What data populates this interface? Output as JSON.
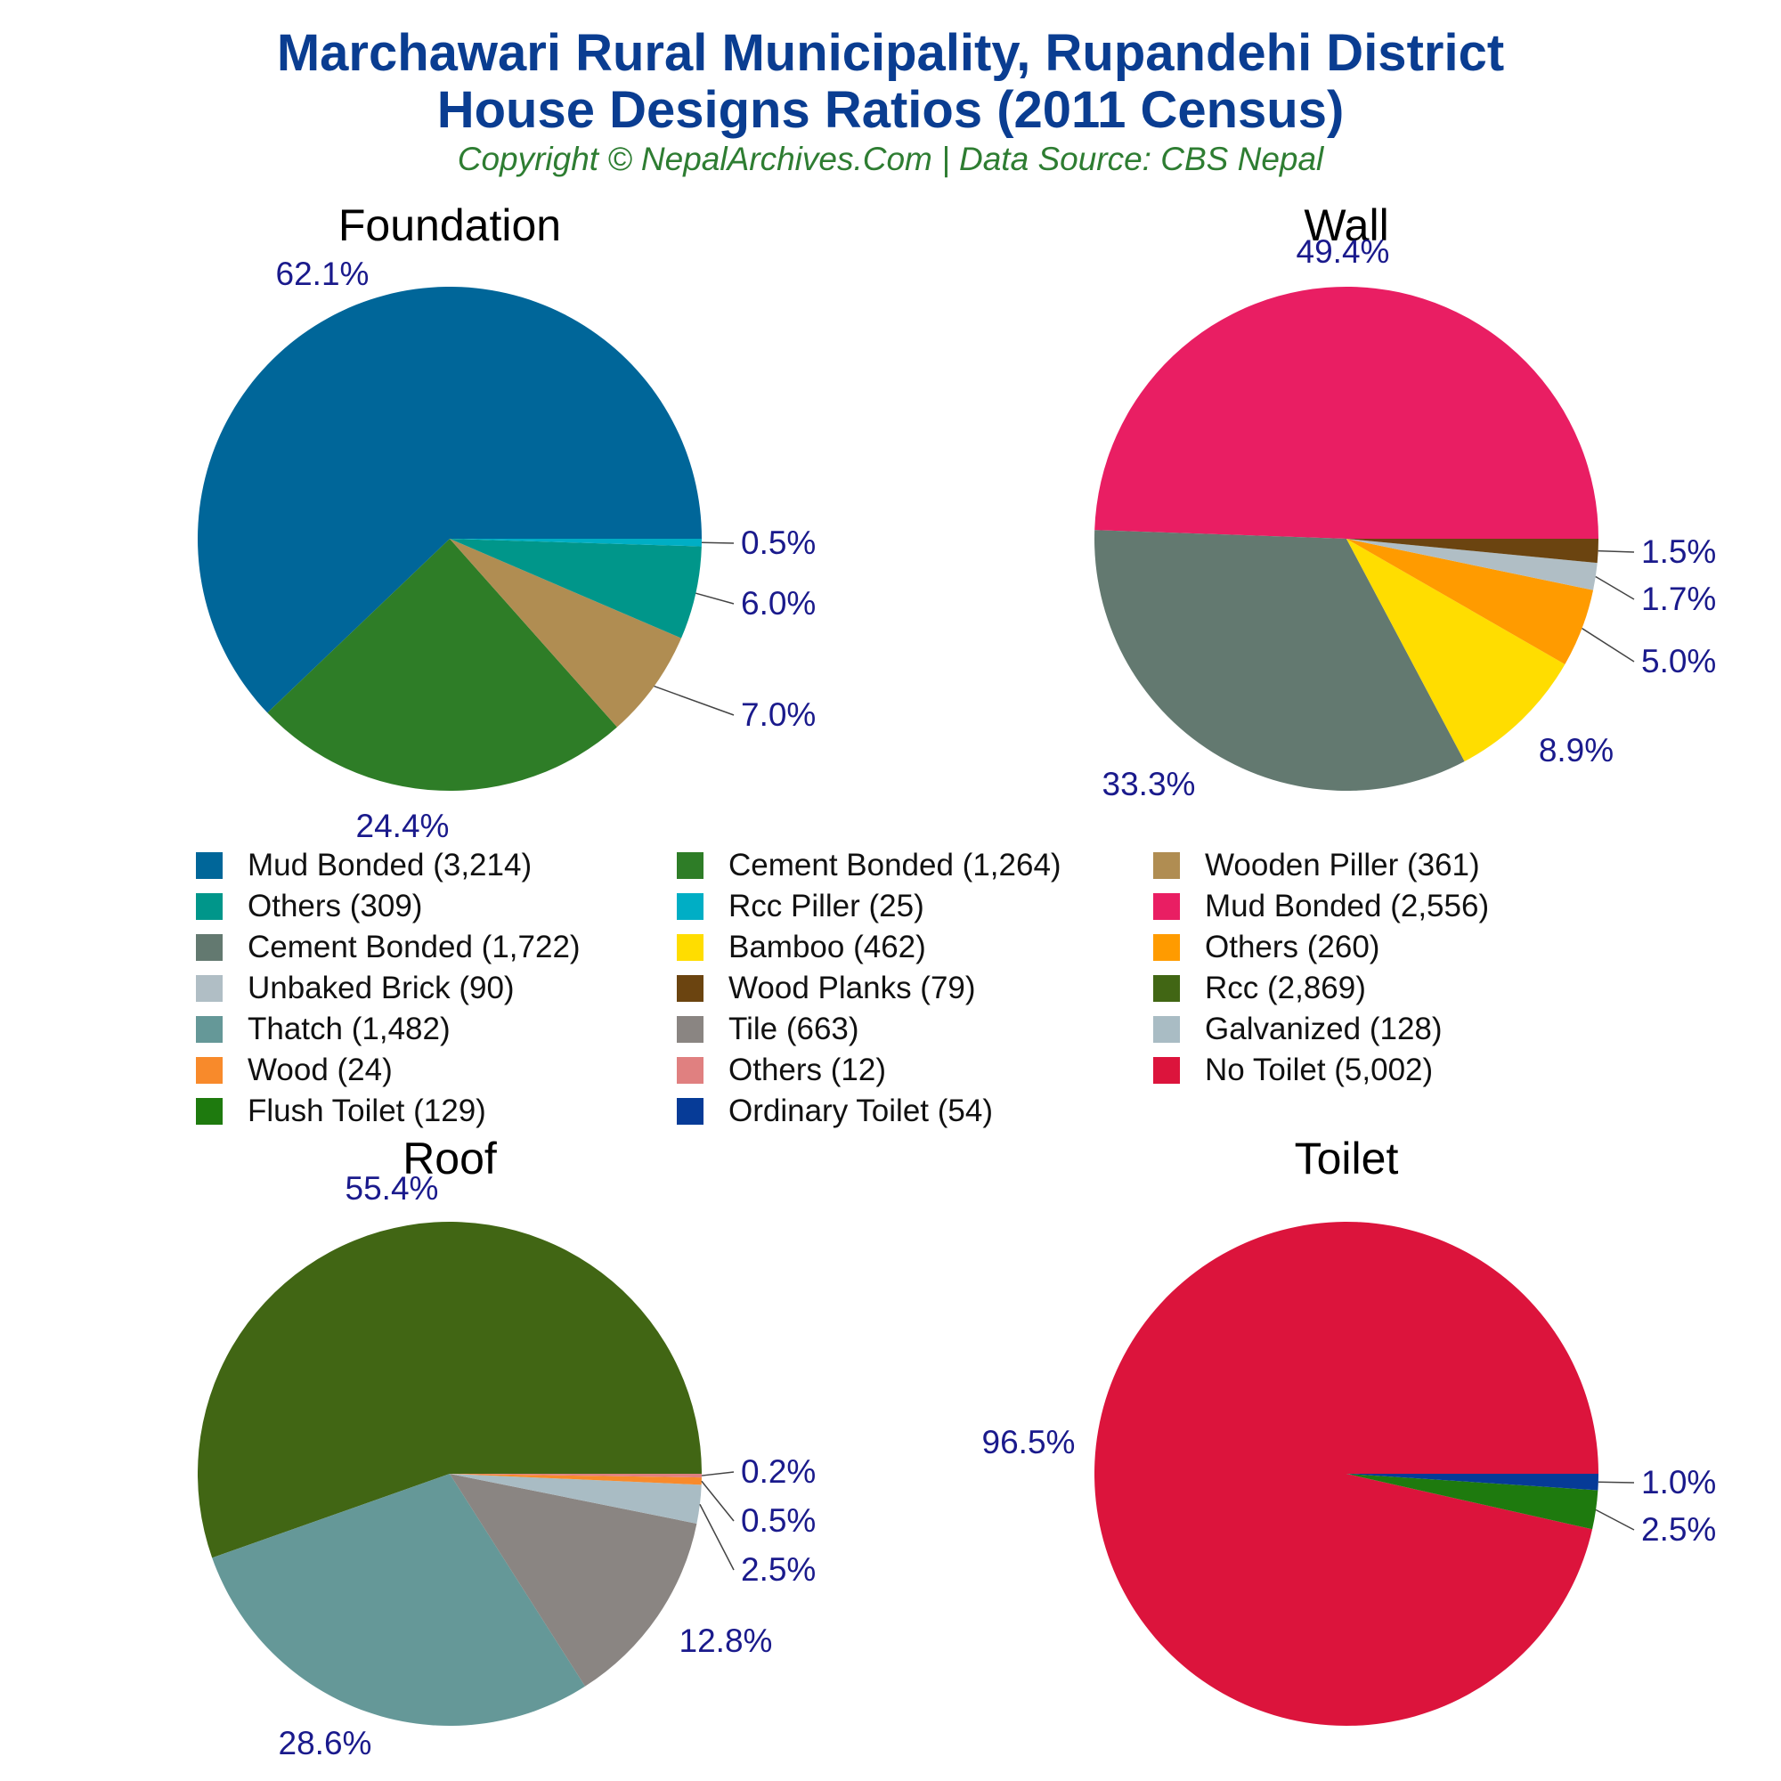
{
  "header": {
    "title_line1": "Marchawari Rural Municipality, Rupandehi District",
    "title_line2": "House Designs Ratios (2011 Census)",
    "subtitle": "Copyright © NepalArchives.Com | Data Source: CBS Nepal"
  },
  "colors": {
    "title": "#0a3d91",
    "subtitle": "#2e7d32",
    "pct_label": "#1a1a8c"
  },
  "legend": [
    {
      "label": "Mud Bonded (3,214)",
      "color": "#006699"
    },
    {
      "label": "Cement Bonded (1,264)",
      "color": "#2e7d27"
    },
    {
      "label": "Wooden Piller (361)",
      "color": "#b08d52"
    },
    {
      "label": "Others (309)",
      "color": "#00968a"
    },
    {
      "label": "Rcc Piller (25)",
      "color": "#00aec5"
    },
    {
      "label": "Mud Bonded (2,556)",
      "color": "#e91e63"
    },
    {
      "label": "Cement Bonded (1,722)",
      "color": "#637970"
    },
    {
      "label": "Bamboo (462)",
      "color": "#ffdd00"
    },
    {
      "label": "Others (260)",
      "color": "#ff9b00"
    },
    {
      "label": "Unbaked Brick (90)",
      "color": "#b0bec5"
    },
    {
      "label": "Wood Planks (79)",
      "color": "#6b4410"
    },
    {
      "label": "Rcc (2,869)",
      "color": "#416614"
    },
    {
      "label": "Thatch (1,482)",
      "color": "#659898"
    },
    {
      "label": "Tile (663)",
      "color": "#8a8582"
    },
    {
      "label": "Galvanized (128)",
      "color": "#a9bcc4"
    },
    {
      "label": "Wood (24)",
      "color": "#f88a2b"
    },
    {
      "label": "Others (12)",
      "color": "#e08080"
    },
    {
      "label": "No Toilet (5,002)",
      "color": "#dc143c"
    },
    {
      "label": "Flush Toilet (129)",
      "color": "#1e7a0e"
    },
    {
      "label": "Ordinary Toilet (54)",
      "color": "#063b97"
    }
  ],
  "chart_data": [
    {
      "type": "pie",
      "title": "Foundation",
      "slices": [
        {
          "name": "Mud Bonded",
          "value": 3214,
          "label": "62.1%",
          "color": "#006699"
        },
        {
          "name": "Cement Bonded",
          "value": 1264,
          "label": "24.4%",
          "color": "#2e7d27"
        },
        {
          "name": "Wooden Piller",
          "value": 361,
          "label": "7.0%",
          "color": "#b08d52"
        },
        {
          "name": "Others",
          "value": 309,
          "label": "6.0%",
          "color": "#00968a"
        },
        {
          "name": "Rcc Piller",
          "value": 25,
          "label": "0.5%",
          "color": "#00aec5"
        }
      ]
    },
    {
      "type": "pie",
      "title": "Wall",
      "slices": [
        {
          "name": "Mud Bonded",
          "value": 2556,
          "label": "49.4%",
          "color": "#e91e63"
        },
        {
          "name": "Cement Bonded",
          "value": 1722,
          "label": "33.3%",
          "color": "#637970"
        },
        {
          "name": "Bamboo",
          "value": 462,
          "label": "8.9%",
          "color": "#ffdd00"
        },
        {
          "name": "Others",
          "value": 260,
          "label": "5.0%",
          "color": "#ff9b00"
        },
        {
          "name": "Unbaked Brick",
          "value": 90,
          "label": "1.7%",
          "color": "#b0bec5"
        },
        {
          "name": "Wood Planks",
          "value": 79,
          "label": "1.5%",
          "color": "#6b4410"
        }
      ]
    },
    {
      "type": "pie",
      "title": "Roof",
      "slices": [
        {
          "name": "Rcc",
          "value": 2869,
          "label": "55.4%",
          "color": "#416614"
        },
        {
          "name": "Thatch",
          "value": 1482,
          "label": "28.6%",
          "color": "#659898"
        },
        {
          "name": "Tile",
          "value": 663,
          "label": "12.8%",
          "color": "#8a8582"
        },
        {
          "name": "Galvanized",
          "value": 128,
          "label": "2.5%",
          "color": "#a9bcc4"
        },
        {
          "name": "Wood",
          "value": 24,
          "label": "0.5%",
          "color": "#f88a2b"
        },
        {
          "name": "Others",
          "value": 12,
          "label": "0.2%",
          "color": "#e08080"
        }
      ]
    },
    {
      "type": "pie",
      "title": "Toilet",
      "slices": [
        {
          "name": "No Toilet",
          "value": 5002,
          "label": "96.5%",
          "color": "#dc143c"
        },
        {
          "name": "Flush Toilet",
          "value": 129,
          "label": "2.5%",
          "color": "#1e7a0e"
        },
        {
          "name": "Ordinary Toilet",
          "value": 54,
          "label": "1.0%",
          "color": "#063b97"
        }
      ]
    }
  ]
}
